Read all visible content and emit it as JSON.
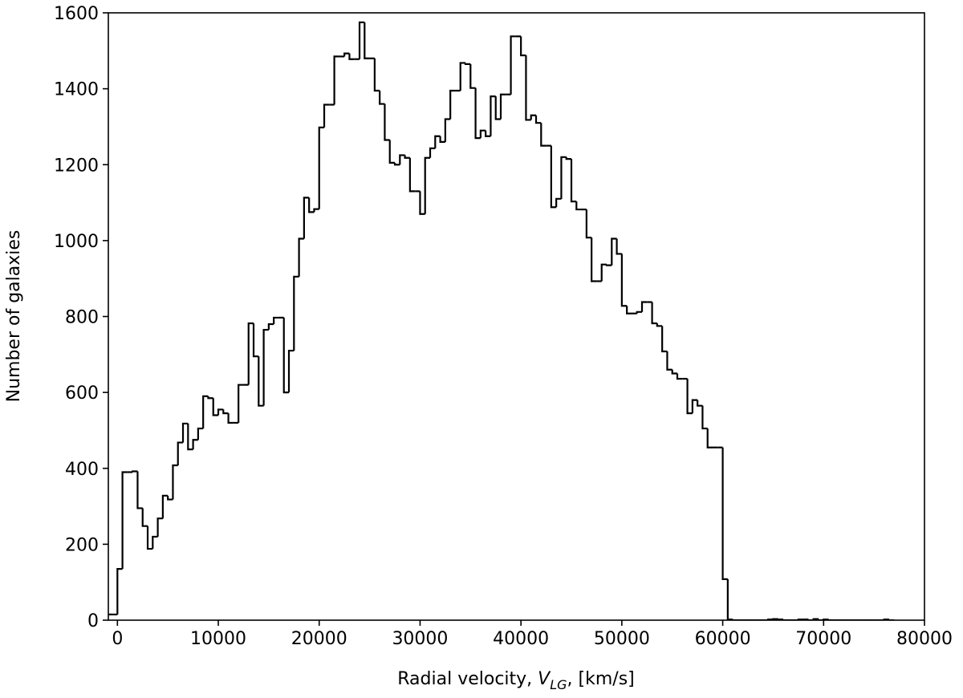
{
  "chart_data": {
    "type": "histogram",
    "x_label": [
      "Radial velocity, ",
      "V",
      "LG",
      ", [km/s]"
    ],
    "y_label": "Number of galaxies",
    "color": "#000000",
    "bins": [
      -1000,
      -500,
      0,
      500,
      1000,
      1500,
      2000,
      2500,
      3000,
      3500,
      4000,
      4500,
      5000,
      5500,
      6000,
      6500,
      7000,
      7500,
      8000,
      8500,
      9000,
      9500,
      10000,
      10500,
      11000,
      11500,
      12000,
      12500,
      13000,
      13500,
      14000,
      14500,
      15000,
      15500,
      16000,
      16500,
      17000,
      17500,
      18000,
      18500,
      19000,
      19500,
      20000,
      20500,
      21000,
      21500,
      22000,
      22500,
      23000,
      23500,
      24000,
      24500,
      25000,
      25500,
      26000,
      26500,
      27000,
      27500,
      28000,
      28500,
      29000,
      29500,
      30000,
      30500,
      31000,
      31500,
      32000,
      32500,
      33000,
      33500,
      34000,
      34500,
      35000,
      35500,
      36000,
      36500,
      37000,
      37500,
      38000,
      38500,
      39000,
      39500,
      40000,
      40500,
      41000,
      41500,
      42000,
      42500,
      43000,
      43500,
      44000,
      44500,
      45000,
      45500,
      46000,
      46500,
      47000,
      47500,
      48000,
      48500,
      49000,
      49500,
      50000,
      50500,
      51000,
      51500,
      52000,
      52500,
      53000,
      53500,
      54000,
      54500,
      55000,
      55500,
      56000,
      56500,
      57000,
      57500,
      58000,
      58500,
      59000,
      59500,
      60000,
      60500,
      61000,
      61500,
      62000,
      62500,
      63000,
      63500,
      64000,
      64500,
      65000,
      65500,
      66000,
      66500,
      67000,
      67500,
      68000,
      68500,
      69000,
      69500,
      70000,
      70500,
      71000,
      71500,
      72000,
      72500,
      73000,
      73500,
      74000,
      74500,
      75000,
      75500,
      76000,
      76500,
      77000
    ],
    "values": [
      15,
      15,
      135,
      390,
      390,
      392,
      295,
      248,
      188,
      220,
      268,
      328,
      318,
      408,
      468,
      518,
      450,
      475,
      505,
      590,
      585,
      540,
      555,
      545,
      520,
      520,
      620,
      620,
      782,
      695,
      565,
      765,
      780,
      797,
      797,
      600,
      710,
      905,
      1005,
      1113,
      1075,
      1083,
      1298,
      1358,
      1358,
      1485,
      1485,
      1493,
      1478,
      1478,
      1575,
      1480,
      1480,
      1395,
      1360,
      1265,
      1205,
      1200,
      1225,
      1218,
      1130,
      1130,
      1070,
      1218,
      1243,
      1275,
      1260,
      1320,
      1395,
      1395,
      1468,
      1465,
      1402,
      1270,
      1290,
      1275,
      1380,
      1320,
      1385,
      1385,
      1538,
      1538,
      1488,
      1318,
      1330,
      1310,
      1250,
      1250,
      1088,
      1110,
      1220,
      1215,
      1103,
      1082,
      1082,
      1008,
      893,
      893,
      937,
      935,
      1005,
      965,
      828,
      808,
      808,
      812,
      838,
      838,
      782,
      775,
      708,
      660,
      650,
      636,
      636,
      545,
      580,
      565,
      505,
      455,
      455,
      455,
      108,
      2,
      0,
      0,
      0,
      0,
      0,
      0,
      0,
      2,
      3,
      2,
      0,
      0,
      0,
      2,
      2,
      0,
      3,
      0,
      2,
      0,
      0,
      0,
      0,
      0,
      0,
      0,
      0,
      0,
      0,
      0,
      2,
      0
    ],
    "xlim": [
      -900,
      80000
    ],
    "ylim": [
      0,
      1600
    ],
    "xticks": [
      0,
      10000,
      20000,
      30000,
      40000,
      50000,
      60000,
      70000,
      80000
    ],
    "yticks": [
      0,
      200,
      400,
      600,
      800,
      1000,
      1200,
      1400,
      1600
    ]
  }
}
